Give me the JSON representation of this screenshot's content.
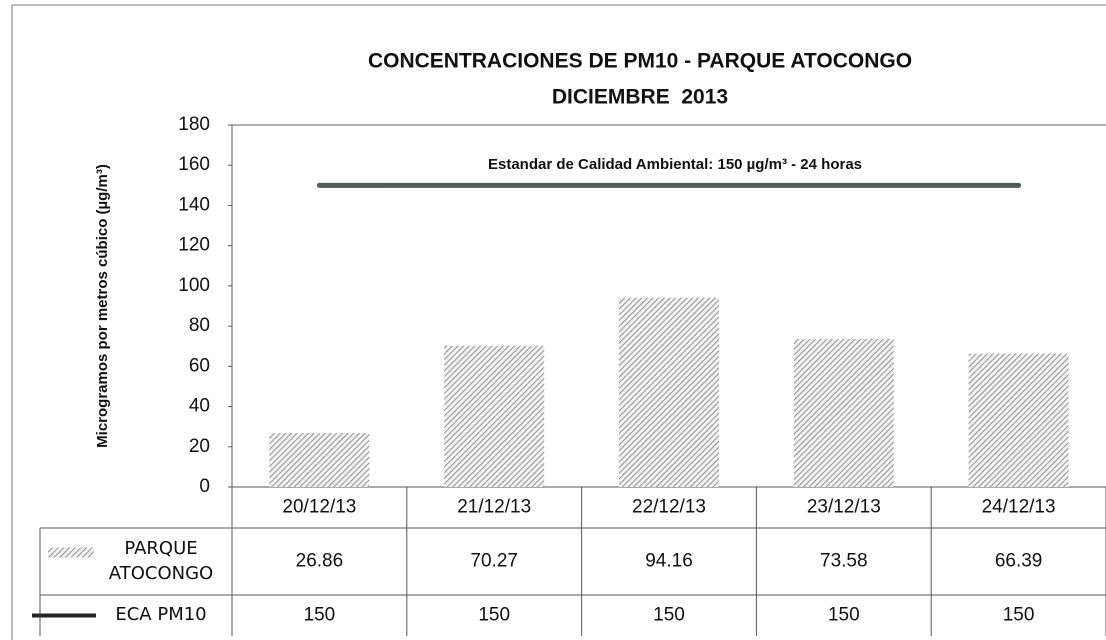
{
  "chart_data": {
    "type": "bar",
    "title": "CONCENTRACIONES DE PM10 - PARQUE ATOCONGO",
    "subtitle": "DICIEMBRE  2013",
    "y_label": "Microgramos por metros cúbico (µg/m³)",
    "annotation": "Estandar de Calidad Ambiental: 150 µg/m³ - 24 horas",
    "categories": [
      "20/12/13",
      "21/12/13",
      "22/12/13",
      "23/12/13",
      "24/12/13"
    ],
    "series": [
      {
        "name": "PARQUE ATOCONGO",
        "type": "bar",
        "color": "#8a8a8a",
        "values": [
          26.86,
          70.27,
          94.16,
          73.58,
          66.39
        ]
      },
      {
        "name": "ECA PM10",
        "type": "line",
        "color": "#4f5d55",
        "values": [
          150,
          150,
          150,
          150,
          150
        ]
      }
    ],
    "ylim": [
      0,
      180
    ],
    "yticks": [
      0,
      20,
      40,
      60,
      80,
      100,
      120,
      140,
      160,
      180
    ],
    "grid": false,
    "data_table": true
  }
}
